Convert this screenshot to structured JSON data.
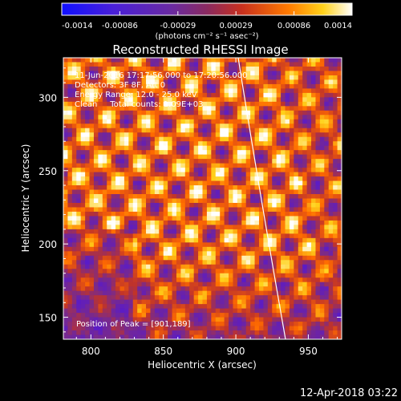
{
  "chart_data": {
    "type": "heatmap",
    "title": "Reconstructed RHESSI Image",
    "xlabel": "Heliocentric X (arcsec)",
    "ylabel": "Heliocentric Y (arcsec)",
    "x_ticks": [
      "800",
      "850",
      "900",
      "950"
    ],
    "y_ticks": [
      "150",
      "200",
      "250",
      "300"
    ],
    "xlim": [
      781,
      973
    ],
    "ylim": [
      135,
      327
    ],
    "colorbar": {
      "ticks": [
        "-0.0014",
        "-0.00086",
        "-0.00029",
        "0.00029",
        "0.00086",
        "0.0014"
      ],
      "range": [
        -0.0014,
        0.0014
      ],
      "units": "(photons cm⁻² s⁻¹ asec⁻²)",
      "colors": [
        "#1010ff",
        "#5a1bc8",
        "#7a2a8a",
        "#c0332a",
        "#ff6a00",
        "#ffd21a",
        "#ffffff"
      ]
    },
    "info_lines": [
      "11-Jun-2016 17:17:56.000 to 17:20:56.000",
      "Detectors: 3F 8F, Att 0",
      "Energy Range: 12.0 - 25.0 keV",
      "Clean     Total counts: 1.09E+03"
    ],
    "peak_label": "Position of Peak = [901,189]",
    "limb_color": "#ffffff"
  },
  "timestamp": "12-Apr-2018 03:22"
}
